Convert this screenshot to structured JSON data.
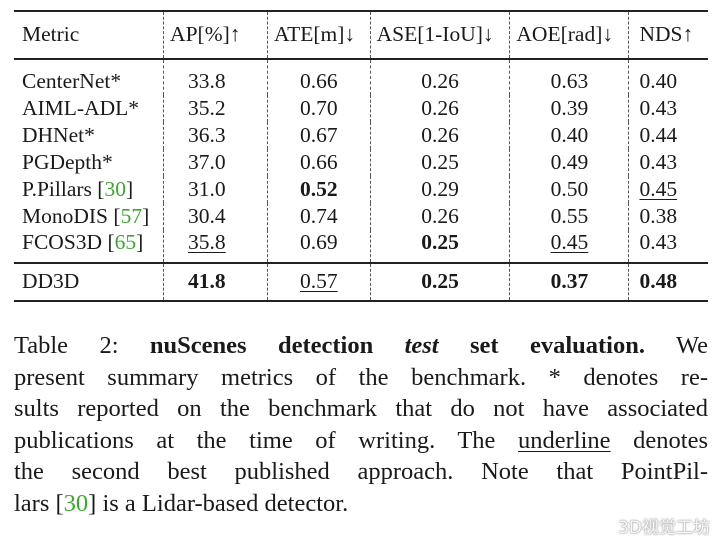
{
  "table": {
    "headers": [
      "Metric",
      "AP[%]↑",
      "ATE[m]↓",
      "ASE[1-IoU]↓",
      "AOE[rad]↓",
      "NDS↑"
    ],
    "rows": [
      {
        "method": "CenterNet*",
        "cite": "",
        "values": [
          "33.8",
          "0.66",
          "0.26",
          "0.63",
          "0.40"
        ]
      },
      {
        "method": "AIML-ADL*",
        "cite": "",
        "values": [
          "35.2",
          "0.70",
          "0.26",
          "0.39",
          "0.43"
        ]
      },
      {
        "method": "DHNet*",
        "cite": "",
        "values": [
          "36.3",
          "0.67",
          "0.26",
          "0.40",
          "0.44"
        ]
      },
      {
        "method": "PGDepth*",
        "cite": "",
        "values": [
          "37.0",
          "0.66",
          "0.25",
          "0.49",
          "0.43"
        ]
      },
      {
        "method": "P.Pillars ",
        "cite": "30",
        "values": [
          "31.0",
          "0.52",
          "0.29",
          "0.50",
          "0.45"
        ]
      },
      {
        "method": "MonoDIS ",
        "cite": "57",
        "values": [
          "30.4",
          "0.74",
          "0.26",
          "0.55",
          "0.38"
        ]
      },
      {
        "method": "FCOS3D ",
        "cite": "65",
        "values": [
          "35.8",
          "0.69",
          "0.25",
          "0.45",
          "0.43"
        ]
      }
    ],
    "ours": {
      "method": "DD3D",
      "values": [
        "41.8",
        "0.57",
        "0.25",
        "0.37",
        "0.48"
      ]
    }
  },
  "caption": {
    "line1_pre": "Table 2:  ",
    "line1_bold_a": "nuScenes detection ",
    "line1_bold_italic": "test",
    "line1_bold_b": " set evaluation.",
    "line1_post": "  We",
    "line2": "present summary metrics of the benchmark.  * denotes re-",
    "line3": "sults reported on the benchmark that do not have associated",
    "line4_pre": "publications at the time of writing. The ",
    "line4_ul": "underline",
    "line4_post": " denotes",
    "line5": "the second best published approach.  Note that PointPil-",
    "line6_pre": "lars [",
    "line6_cite": "30",
    "line6_post": "] is a Lidar-based detector."
  },
  "watermark": {
    "text": "3D视觉工坊",
    "icon": "wechat-icon"
  }
}
